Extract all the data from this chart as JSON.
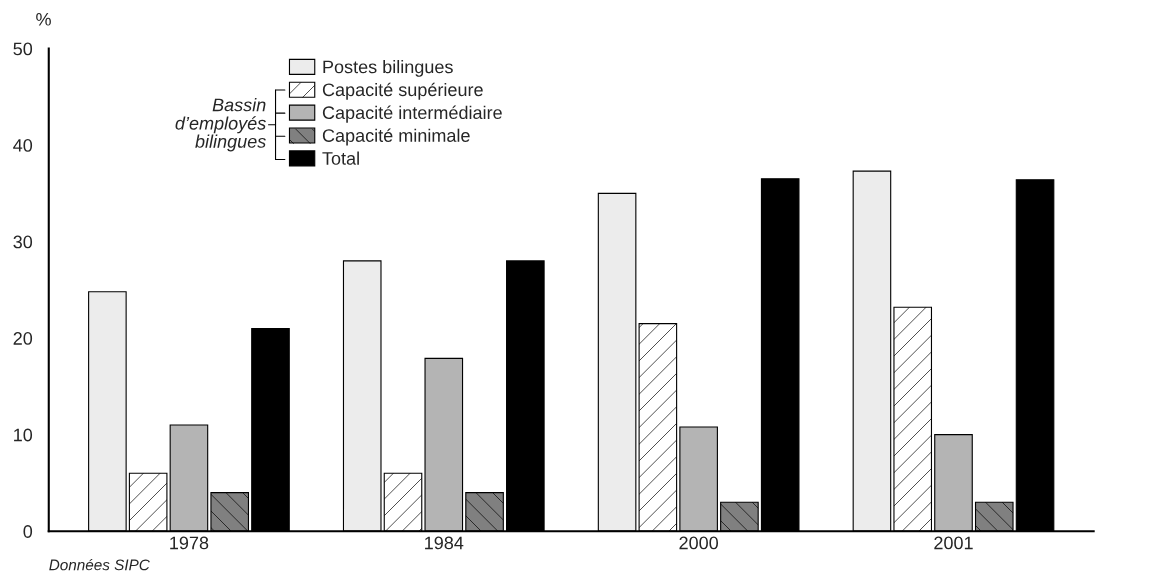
{
  "chart_data": {
    "type": "bar",
    "ylabel": "%",
    "categories": [
      "1978",
      "1984",
      "2000",
      "2001"
    ],
    "series": [
      {
        "name": "Postes bilingues",
        "color": "#ececec",
        "values": [
          24.8,
          28.0,
          35.0,
          37.3
        ]
      },
      {
        "name": "Capacité supérieure",
        "color": "#ffffff",
        "values": [
          6.0,
          6.0,
          21.5,
          23.2
        ]
      },
      {
        "name": "Capacité intermédiaire",
        "color": "#b4b4b4",
        "values": [
          11.0,
          17.9,
          10.8,
          10.0
        ]
      },
      {
        "name": "Capacité minimale",
        "color": "#808080",
        "values": [
          4.0,
          4.0,
          3.0,
          3.0
        ]
      },
      {
        "name": "Total",
        "color": "#000000",
        "values": [
          21.0,
          28.0,
          36.5,
          36.4
        ]
      }
    ],
    "ylim": [
      0,
      50
    ],
    "yticks": [
      0,
      10,
      20,
      30,
      40,
      50
    ],
    "grid": false,
    "legend": "top left",
    "annotations": [
      "Bassin\nd’employés\nbilingues",
      "Données SIPC"
    ]
  }
}
